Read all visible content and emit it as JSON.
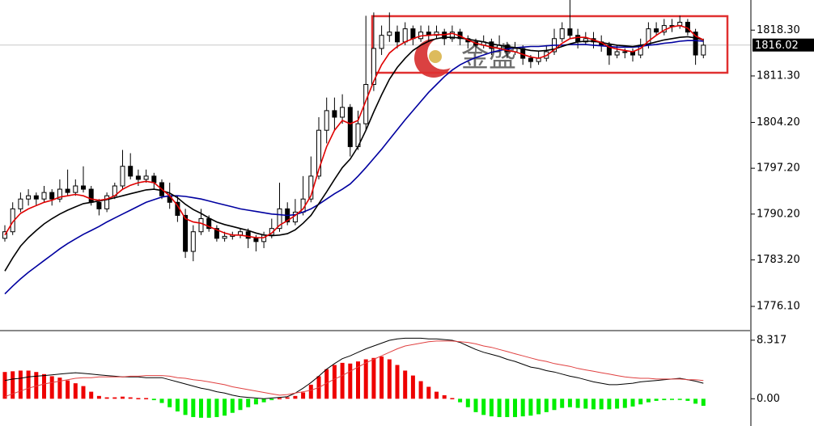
{
  "chart_data": [
    {
      "type": "candlestick",
      "up_color": "#ffffff",
      "down_color": "#000000",
      "edge_color": "#000000",
      "ylim": [
        1772.4,
        1822.9
      ],
      "yticks": [
        {
          "value": 1776.1,
          "label": "1776.10"
        },
        {
          "value": 1783.2,
          "label": "1783.20"
        },
        {
          "value": 1790.2,
          "label": "1790.20"
        },
        {
          "value": 1797.2,
          "label": "1797.20"
        },
        {
          "value": 1804.2,
          "label": "1804.20"
        },
        {
          "value": 1811.3,
          "label": "1811.30"
        },
        {
          "value": 1818.3,
          "label": "1818.30"
        }
      ],
      "last_price": {
        "value": 1816.02,
        "label": "1816.02"
      },
      "watermark": "金盛",
      "values": [
        [
          1786.5,
          1788.5,
          1786,
          1787.5
        ],
        [
          1787.5,
          1792,
          1787,
          1791
        ],
        [
          1791,
          1793.5,
          1790.5,
          1792.5
        ],
        [
          1792.5,
          1794,
          1791.5,
          1793
        ],
        [
          1793,
          1793.5,
          1791.5,
          1792.5
        ],
        [
          1792.5,
          1794.5,
          1792,
          1793.5
        ],
        [
          1793.5,
          1794,
          1791.5,
          1792.5
        ],
        [
          1792.5,
          1795.5,
          1792,
          1794
        ],
        [
          1794,
          1797,
          1793,
          1793.5
        ],
        [
          1793.5,
          1795.5,
          1793,
          1794.5
        ],
        [
          1794.5,
          1797.5,
          1793.5,
          1794
        ],
        [
          1794,
          1794.5,
          1791.5,
          1792
        ],
        [
          1792,
          1792.5,
          1790,
          1791
        ],
        [
          1791,
          1793.5,
          1790.5,
          1793
        ],
        [
          1793,
          1795,
          1792.5,
          1794.5
        ],
        [
          1794.5,
          1800,
          1794,
          1797.5
        ],
        [
          1797.5,
          1799.5,
          1795.5,
          1796
        ],
        [
          1796,
          1797,
          1794.5,
          1795.5
        ],
        [
          1795.5,
          1797,
          1795,
          1796
        ],
        [
          1796,
          1796.5,
          1794,
          1795
        ],
        [
          1795,
          1795.5,
          1792.5,
          1793
        ],
        [
          1793,
          1795,
          1791,
          1792
        ],
        [
          1792,
          1793,
          1789,
          1790
        ],
        [
          1790,
          1791,
          1783.5,
          1784.5
        ],
        [
          1784.5,
          1788.5,
          1783,
          1787.5
        ],
        [
          1787.5,
          1791,
          1787,
          1789.5
        ],
        [
          1789.5,
          1790,
          1787.5,
          1788
        ],
        [
          1788,
          1788.5,
          1786,
          1786.5
        ],
        [
          1786.5,
          1787.5,
          1786,
          1786.8
        ],
        [
          1786.8,
          1787.5,
          1786.3,
          1787
        ],
        [
          1787,
          1788,
          1786.5,
          1787.5
        ],
        [
          1787.5,
          1788,
          1785,
          1786.5
        ],
        [
          1786.5,
          1787,
          1784.5,
          1786
        ],
        [
          1786,
          1787.5,
          1785,
          1787
        ],
        [
          1787,
          1789.5,
          1786.5,
          1788
        ],
        [
          1788,
          1795,
          1787.5,
          1791
        ],
        [
          1791,
          1792,
          1788.5,
          1789
        ],
        [
          1789,
          1792.5,
          1788.5,
          1790.5
        ],
        [
          1790.5,
          1796,
          1790,
          1792.5
        ],
        [
          1792.5,
          1799,
          1792,
          1796
        ],
        [
          1796,
          1805,
          1795.5,
          1803
        ],
        [
          1803,
          1808,
          1801,
          1806
        ],
        [
          1806,
          1808,
          1803,
          1805
        ],
        [
          1805,
          1808.5,
          1804,
          1806.5
        ],
        [
          1806.5,
          1807,
          1799,
          1800.5
        ],
        [
          1800.5,
          1806,
          1800,
          1804
        ],
        [
          1804,
          1820.5,
          1803,
          1810
        ],
        [
          1810,
          1821,
          1809,
          1815.5
        ],
        [
          1815.5,
          1819,
          1814.5,
          1817.5
        ],
        [
          1817.5,
          1821,
          1816.5,
          1818
        ],
        [
          1818,
          1819,
          1815.5,
          1816.5
        ],
        [
          1816.5,
          1819.5,
          1816,
          1818.5
        ],
        [
          1818.5,
          1819,
          1816,
          1817
        ],
        [
          1817,
          1819,
          1816.5,
          1818
        ],
        [
          1818,
          1819,
          1816.5,
          1817.5
        ],
        [
          1817.5,
          1819,
          1817,
          1818
        ],
        [
          1818,
          1818.5,
          1816,
          1817
        ],
        [
          1817,
          1819,
          1816.5,
          1818
        ],
        [
          1818,
          1818.5,
          1816,
          1817
        ],
        [
          1817,
          1817.5,
          1815.5,
          1816.5
        ],
        [
          1816.5,
          1817,
          1815,
          1816
        ],
        [
          1816,
          1817.5,
          1815.5,
          1816.5
        ],
        [
          1816.5,
          1817,
          1814.5,
          1815.5
        ],
        [
          1815.5,
          1817.5,
          1815,
          1816
        ],
        [
          1816,
          1816.5,
          1814,
          1815
        ],
        [
          1815,
          1816.5,
          1814.5,
          1815.5
        ],
        [
          1815.5,
          1816,
          1813,
          1814
        ],
        [
          1814,
          1814.5,
          1812.5,
          1813.5
        ],
        [
          1813.5,
          1815,
          1813,
          1814
        ],
        [
          1814,
          1816,
          1813.5,
          1815
        ],
        [
          1815,
          1818.5,
          1814.5,
          1817
        ],
        [
          1817,
          1819.5,
          1816.5,
          1818.5
        ],
        [
          1818.5,
          1823,
          1817,
          1817.5
        ],
        [
          1817.5,
          1818.5,
          1815.5,
          1816.5
        ],
        [
          1816.5,
          1818,
          1816,
          1817
        ],
        [
          1817,
          1818,
          1815.5,
          1816.5
        ],
        [
          1816.5,
          1817.5,
          1815,
          1816
        ],
        [
          1816,
          1816.5,
          1813,
          1814.5
        ],
        [
          1814.5,
          1816,
          1814,
          1815
        ],
        [
          1815,
          1815.5,
          1814,
          1815
        ],
        [
          1815,
          1815.5,
          1813.5,
          1814.5
        ],
        [
          1814.5,
          1817,
          1814,
          1816
        ],
        [
          1816,
          1819.5,
          1815.5,
          1818.5
        ],
        [
          1818.5,
          1819.5,
          1817.5,
          1818
        ],
        [
          1818,
          1820,
          1817.5,
          1819
        ],
        [
          1819,
          1820,
          1818,
          1819
        ],
        [
          1819,
          1820.5,
          1818.5,
          1819.5
        ],
        [
          1819.5,
          1820,
          1817.5,
          1818
        ],
        [
          1818,
          1818.5,
          1813,
          1814.5
        ],
        [
          1814.5,
          1817,
          1814,
          1816
        ]
      ],
      "overlays": [
        {
          "color": "#0000a0",
          "values": [
            1778,
            1779.2,
            1780.3,
            1781.3,
            1782.2,
            1783.1,
            1784,
            1784.9,
            1785.7,
            1786.4,
            1787.1,
            1787.7,
            1788.3,
            1789,
            1789.6,
            1790.2,
            1790.8,
            1791.4,
            1792,
            1792.4,
            1792.8,
            1793,
            1793,
            1792.9,
            1792.7,
            1792.5,
            1792.2,
            1791.9,
            1791.6,
            1791.3,
            1791,
            1790.8,
            1790.6,
            1790.4,
            1790.2,
            1790.1,
            1790,
            1790.1,
            1790.5,
            1791,
            1791.7,
            1792.5,
            1793.3,
            1794,
            1794.8,
            1796,
            1797.3,
            1798.7,
            1800.1,
            1801.6,
            1803.1,
            1804.6,
            1806,
            1807.4,
            1808.8,
            1810,
            1811.2,
            1812.2,
            1813,
            1813.6,
            1814.1,
            1814.5,
            1814.9,
            1815.2,
            1815.4,
            1815.6,
            1815.7,
            1815.8,
            1815.8,
            1815.9,
            1816,
            1816,
            1816.1,
            1816.1,
            1816.1,
            1816,
            1815.9,
            1815.8,
            1815.7,
            1815.7,
            1815.7,
            1815.8,
            1816,
            1816.1,
            1816.3,
            1816.4,
            1816.6,
            1816.7,
            1816.7,
            1816.6
          ]
        },
        {
          "color": "#000000",
          "values": [
            1781.5,
            1783.5,
            1785.3,
            1786.6,
            1787.7,
            1788.7,
            1789.5,
            1790.2,
            1790.8,
            1791.3,
            1791.8,
            1792,
            1792.2,
            1792.4,
            1792.7,
            1793,
            1793.3,
            1793.6,
            1793.9,
            1794,
            1793.8,
            1793.4,
            1792.7,
            1791.7,
            1790.9,
            1790.3,
            1789.6,
            1789,
            1788.6,
            1788.3,
            1788,
            1787.7,
            1787.3,
            1787,
            1786.9,
            1787,
            1787.2,
            1787.8,
            1788.8,
            1790,
            1791.8,
            1793.6,
            1795.5,
            1797.3,
            1798.6,
            1800.5,
            1803,
            1805.8,
            1808.4,
            1810.8,
            1812.6,
            1814,
            1815.2,
            1816,
            1816.6,
            1817,
            1817.2,
            1817.2,
            1817.1,
            1816.9,
            1816.7,
            1816.5,
            1816.2,
            1816,
            1815.8,
            1815.6,
            1815.4,
            1815.2,
            1815.1,
            1815.2,
            1815.4,
            1815.8,
            1816.2,
            1816.5,
            1816.6,
            1816.6,
            1816.4,
            1816.2,
            1816,
            1815.9,
            1815.8,
            1816,
            1816.2,
            1816.5,
            1816.8,
            1817,
            1817.2,
            1817.3,
            1817.1,
            1816.8
          ]
        },
        {
          "color": "#e00000",
          "values": [
            1787,
            1789,
            1790.3,
            1791,
            1791.5,
            1792,
            1792.3,
            1792.8,
            1793,
            1793.2,
            1793,
            1792.5,
            1792.3,
            1792.5,
            1793,
            1794,
            1794.6,
            1795,
            1795.2,
            1795,
            1794,
            1793,
            1791.5,
            1789.5,
            1789,
            1788.8,
            1788.3,
            1787.8,
            1787.3,
            1787,
            1787,
            1786.8,
            1786.6,
            1786.6,
            1787.3,
            1788.5,
            1789.2,
            1790,
            1791,
            1793,
            1797,
            1800.5,
            1803,
            1804.5,
            1804,
            1804.5,
            1807.5,
            1810.5,
            1813,
            1814.8,
            1815.8,
            1816.5,
            1817,
            1817.4,
            1817.5,
            1817.6,
            1817.6,
            1817.8,
            1817.4,
            1816.8,
            1816.3,
            1816,
            1815.7,
            1815.5,
            1815.2,
            1815,
            1814.6,
            1814.2,
            1814,
            1814.4,
            1815.3,
            1816.3,
            1817,
            1817.2,
            1817.2,
            1816.8,
            1816.4,
            1815.7,
            1815.4,
            1815.2,
            1815,
            1815.5,
            1816.6,
            1817.5,
            1818.3,
            1818.8,
            1819,
            1818.6,
            1817.4,
            1816.8
          ]
        }
      ]
    },
    {
      "type": "macd",
      "positive_color": "#ee0000",
      "negative_color": "#00ee00",
      "ylim": [
        -3.87,
        9.45
      ],
      "yticks": [
        {
          "value": 0,
          "label": "0.00"
        },
        8.317
      ],
      "values": [
        3.8,
        3.9,
        4.0,
        4.0,
        3.8,
        3.5,
        3.2,
        3.0,
        2.6,
        2.2,
        1.8,
        1.0,
        0.4,
        0.2,
        0.2,
        0.3,
        0.2,
        0.1,
        0.1,
        -0.2,
        -0.6,
        -1.2,
        -1.8,
        -2.3,
        -2.6,
        -2.7,
        -2.7,
        -2.6,
        -2.4,
        -2.0,
        -1.6,
        -1.2,
        -0.8,
        -0.5,
        -0.2,
        0.1,
        0.2,
        0.4,
        0.9,
        2.0,
        3.2,
        4.2,
        4.8,
        5.1,
        5.0,
        5.3,
        5.6,
        5.8,
        6.0,
        5.6,
        4.8,
        4.0,
        3.3,
        2.5,
        1.7,
        1.0,
        0.5,
        0.1,
        -0.5,
        -1.2,
        -1.9,
        -2.3,
        -2.5,
        -2.6,
        -2.6,
        -2.6,
        -2.5,
        -2.4,
        -2.2,
        -1.9,
        -1.6,
        -1.3,
        -1.2,
        -1.3,
        -1.4,
        -1.5,
        -1.5,
        -1.5,
        -1.4,
        -1.3,
        -1.1,
        -0.8,
        -0.5,
        -0.3,
        -0.2,
        -0.1,
        -0.1,
        -0.3,
        -0.7,
        -1.0
      ],
      "lines": [
        {
          "color": "#000000",
          "values": [
            2.6,
            2.8,
            2.9,
            3.1,
            3.2,
            3.3,
            3.4,
            3.5,
            3.6,
            3.7,
            3.6,
            3.5,
            3.4,
            3.3,
            3.2,
            3.1,
            3.1,
            3.1,
            3.0,
            3.0,
            3.0,
            2.7,
            2.4,
            2.1,
            1.8,
            1.5,
            1.3,
            1.0,
            0.8,
            0.5,
            0.3,
            0.2,
            0.1,
            0,
            0.1,
            0.2,
            0.3,
            0.8,
            1.5,
            2.3,
            3.2,
            4.2,
            5.0,
            5.7,
            6.1,
            6.6,
            7.1,
            7.5,
            7.9,
            8.3,
            8.5,
            8.6,
            8.6,
            8.6,
            8.5,
            8.5,
            8.4,
            8.3,
            8.0,
            7.5,
            7.0,
            6.6,
            6.3,
            6.0,
            5.6,
            5.3,
            4.9,
            4.5,
            4.3,
            4.0,
            3.8,
            3.5,
            3.2,
            3.0,
            2.7,
            2.4,
            2.2,
            2.0,
            2.0,
            2.1,
            2.2,
            2.4,
            2.5,
            2.6,
            2.7,
            2.8,
            2.9,
            2.7,
            2.5,
            2.2
          ]
        },
        {
          "color": "#e04040",
          "values": [
            0.3,
            0.7,
            1.1,
            1.5,
            1.8,
            2.1,
            2.3,
            2.5,
            2.7,
            2.9,
            3.0,
            3.0,
            3.1,
            3.1,
            3.1,
            3.1,
            3.2,
            3.2,
            3.3,
            3.3,
            3.3,
            3.2,
            3.0,
            2.9,
            2.7,
            2.6,
            2.4,
            2.2,
            2.0,
            1.7,
            1.5,
            1.3,
            1.1,
            0.9,
            0.7,
            0.5,
            0.6,
            0.8,
            1.0,
            1.2,
            1.6,
            2.2,
            2.8,
            3.3,
            3.9,
            4.5,
            5.1,
            5.6,
            6.1,
            6.6,
            7.1,
            7.5,
            7.7,
            7.9,
            8.1,
            8.2,
            8.2,
            8.2,
            8.1,
            8.0,
            7.8,
            7.5,
            7.3,
            7.0,
            6.7,
            6.4,
            6.1,
            5.8,
            5.5,
            5.3,
            5.0,
            4.8,
            4.6,
            4.3,
            4.1,
            3.9,
            3.7,
            3.5,
            3.3,
            3.1,
            3.0,
            2.9,
            2.9,
            2.8,
            2.8,
            2.8,
            2.8,
            2.7,
            2.7,
            2.6
          ]
        }
      ]
    }
  ]
}
